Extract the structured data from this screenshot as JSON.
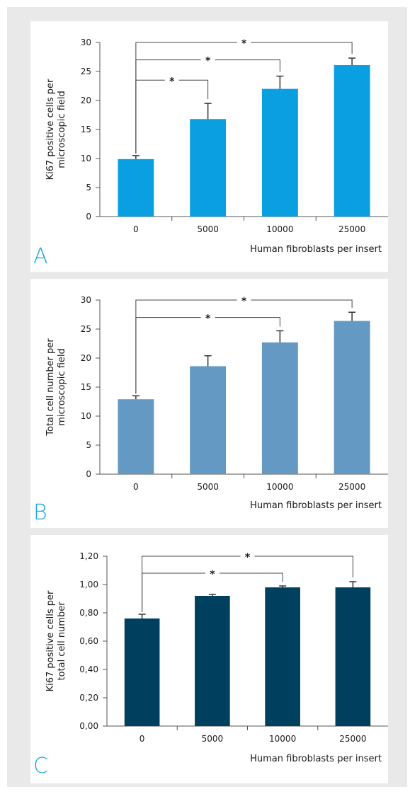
{
  "chart_data": [
    {
      "type": "bar",
      "panel_letter": "A",
      "ylabel_lines": [
        "Ki67 positive cells per",
        "microscopic field"
      ],
      "xlabel": "Human fibroblasts per insert",
      "categories": [
        "0",
        "5000",
        "10000",
        "25000"
      ],
      "values": [
        9.9,
        16.8,
        22.0,
        26.1
      ],
      "errors": [
        0.6,
        2.7,
        2.2,
        1.2
      ],
      "ylim": [
        0,
        30
      ],
      "yticks": [
        0,
        5,
        10,
        15,
        20,
        25,
        30
      ],
      "ytick_labels": [
        "0",
        "5",
        "10",
        "15",
        "20",
        "25",
        "30"
      ],
      "bar_color": "#0a9fe1",
      "significance": [
        {
          "from": 0,
          "to": 1,
          "label": "*",
          "level": 23.5
        },
        {
          "from": 0,
          "to": 2,
          "label": "*",
          "level": 27.0
        },
        {
          "from": 0,
          "to": 3,
          "label": "*",
          "level": 30.0
        }
      ]
    },
    {
      "type": "bar",
      "panel_letter": "B",
      "ylabel_lines": [
        "Total cell number per",
        "microscopic field"
      ],
      "xlabel": "Human fibroblasts per insert",
      "categories": [
        "0",
        "5000",
        "10000",
        "25000"
      ],
      "values": [
        12.9,
        18.6,
        22.7,
        26.4
      ],
      "errors": [
        0.6,
        1.8,
        2.0,
        1.5
      ],
      "ylim": [
        0,
        30
      ],
      "yticks": [
        0,
        5,
        10,
        15,
        20,
        25,
        30
      ],
      "ytick_labels": [
        "0",
        "5",
        "10",
        "15",
        "20",
        "25",
        "30"
      ],
      "bar_color": "#6499c4",
      "significance": [
        {
          "from": 0,
          "to": 2,
          "label": "*",
          "level": 27.0
        },
        {
          "from": 0,
          "to": 3,
          "label": "*",
          "level": 30.0
        }
      ]
    },
    {
      "type": "bar",
      "panel_letter": "C",
      "ylabel_lines": [
        "Ki67 positive cells per",
        "total cell number"
      ],
      "xlabel": "Human fibroblasts per insert",
      "categories": [
        "0",
        "5000",
        "10000",
        "25000"
      ],
      "values": [
        0.76,
        0.92,
        0.98,
        0.98
      ],
      "errors": [
        0.03,
        0.01,
        0.01,
        0.04
      ],
      "ylim": [
        0,
        1.2
      ],
      "yticks": [
        0,
        0.2,
        0.4,
        0.6,
        0.8,
        1.0,
        1.2
      ],
      "ytick_labels": [
        "0,00",
        "0,20",
        "0,40",
        "0,60",
        "0,80",
        "1,00",
        "1,20"
      ],
      "bar_color": "#00405f",
      "significance": [
        {
          "from": 0,
          "to": 2,
          "label": "*",
          "level": 1.08
        },
        {
          "from": 0,
          "to": 3,
          "label": "*",
          "level": 1.2
        }
      ]
    }
  ]
}
